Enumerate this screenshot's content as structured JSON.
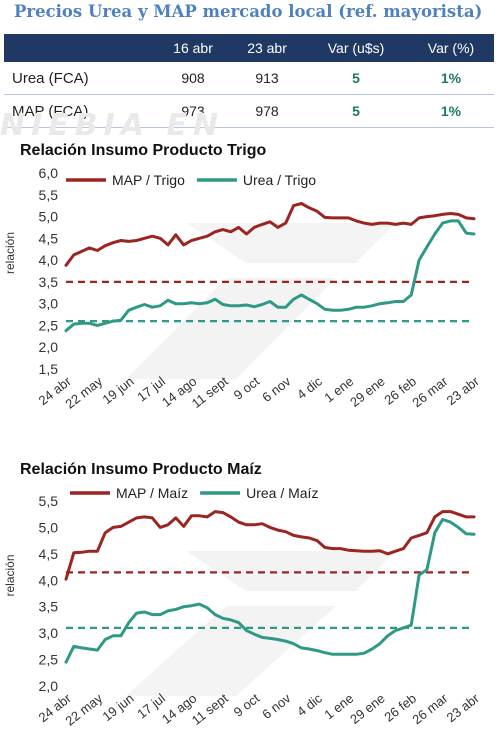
{
  "header": {
    "title": "Precios Urea y MAP mercado local (ref. mayorista)"
  },
  "table": {
    "columns": [
      "",
      "16 abr",
      "23 abr",
      "Var (u$s)",
      "Var (%)"
    ],
    "rows": [
      [
        "Urea (FCA)",
        "908",
        "913",
        "5",
        "1%"
      ],
      [
        "MAP (FCA)",
        "973",
        "978",
        "5",
        "1%"
      ]
    ]
  },
  "watermark": "NIEBIA EN",
  "colors": {
    "map": "#9b2521",
    "urea": "#2e9a86",
    "table_header": "#1f3864",
    "title": "#4f81bd"
  },
  "chart_data": [
    {
      "type": "line",
      "title": "Relación Insumo Producto Trigo",
      "ylabel": "relación",
      "ylim": [
        1.5,
        6.0
      ],
      "yticks": [
        "1,5",
        "2,0",
        "2,5",
        "3,0",
        "3,5",
        "4,0",
        "4,5",
        "5,0",
        "5,5",
        "6,0"
      ],
      "x_tick_labels": [
        "24 abr",
        "22 may",
        "19 jun",
        "17 jul",
        "14 ago",
        "11 sept",
        "9 oct",
        "6 nov",
        "4 dic",
        "1 ene",
        "29 ene",
        "26 feb",
        "26 mar",
        "23 abr"
      ],
      "x_range": [
        0,
        52
      ],
      "series": [
        {
          "name": "MAP / Trigo",
          "color": "#9b2521",
          "x": [
            0,
            1,
            2,
            3,
            4,
            5,
            6,
            7,
            8,
            9,
            10,
            11,
            12,
            13,
            14,
            15,
            16,
            17,
            18,
            19,
            20,
            21,
            22,
            23,
            24,
            25,
            26,
            27,
            28,
            29,
            30,
            31,
            32,
            33,
            34,
            35,
            36,
            37,
            38,
            39,
            40,
            41,
            42,
            43,
            44,
            45,
            46,
            47,
            48,
            49,
            50,
            51,
            52
          ],
          "values": [
            3.88,
            4.12,
            4.2,
            4.28,
            4.22,
            4.33,
            4.4,
            4.45,
            4.43,
            4.45,
            4.5,
            4.55,
            4.5,
            4.35,
            4.58,
            4.35,
            4.45,
            4.5,
            4.55,
            4.65,
            4.7,
            4.65,
            4.75,
            4.6,
            4.75,
            4.82,
            4.88,
            4.75,
            4.85,
            5.25,
            5.3,
            5.2,
            5.12,
            4.98,
            4.97,
            4.97,
            4.97,
            4.9,
            4.85,
            4.82,
            4.85,
            4.85,
            4.82,
            4.85,
            4.82,
            4.97,
            5.0,
            5.02,
            5.05,
            5.07,
            5.05,
            4.97,
            4.95
          ]
        },
        {
          "name": "Urea / Trigo",
          "color": "#2e9a86",
          "x": [
            0,
            1,
            2,
            3,
            4,
            5,
            6,
            7,
            8,
            9,
            10,
            11,
            12,
            13,
            14,
            15,
            16,
            17,
            18,
            19,
            20,
            21,
            22,
            23,
            24,
            25,
            26,
            27,
            28,
            29,
            30,
            31,
            32,
            33,
            34,
            35,
            36,
            37,
            38,
            39,
            40,
            41,
            42,
            43,
            44,
            45,
            46,
            47,
            48,
            49,
            50,
            51,
            52
          ],
          "values": [
            2.38,
            2.53,
            2.55,
            2.55,
            2.5,
            2.55,
            2.6,
            2.62,
            2.85,
            2.92,
            2.98,
            2.92,
            2.95,
            3.08,
            3.0,
            3.0,
            3.02,
            3.0,
            3.02,
            3.1,
            2.98,
            2.95,
            2.95,
            2.97,
            2.93,
            2.98,
            3.05,
            2.92,
            2.92,
            3.1,
            3.2,
            3.1,
            3.0,
            2.87,
            2.85,
            2.85,
            2.87,
            2.92,
            2.92,
            2.95,
            3.0,
            3.02,
            3.05,
            3.05,
            3.2,
            4.0,
            4.3,
            4.6,
            4.85,
            4.9,
            4.9,
            4.62,
            4.6
          ]
        }
      ],
      "reference_lines": [
        {
          "name": "MAP / Trigo",
          "value": 3.5,
          "color": "#9b2521",
          "style": "dashed"
        },
        {
          "name": "Urea / Trigo",
          "value": 2.6,
          "color": "#2e9a86",
          "style": "dashed"
        }
      ],
      "legend_position": "top"
    },
    {
      "type": "line",
      "title": "Relación Insumo Producto Maíz",
      "ylabel": "relación",
      "ylim": [
        2.0,
        5.5
      ],
      "yticks": [
        "2,0",
        "2,5",
        "3,0",
        "3,5",
        "4,0",
        "4,5",
        "5,0",
        "5,5"
      ],
      "x_tick_labels": [
        "24 abr",
        "22 may",
        "19 jun",
        "17 jul",
        "14 ago",
        "11 sept",
        "9 oct",
        "6 nov",
        "4 dic",
        "1 ene",
        "29 ene",
        "26 feb",
        "26 mar",
        "23 abr"
      ],
      "x_range": [
        0,
        52
      ],
      "series": [
        {
          "name": "MAP / Maíz",
          "color": "#9b2521",
          "x": [
            0,
            1,
            2,
            3,
            4,
            5,
            6,
            7,
            8,
            9,
            10,
            11,
            12,
            13,
            14,
            15,
            16,
            17,
            18,
            19,
            20,
            21,
            22,
            23,
            24,
            25,
            26,
            27,
            28,
            29,
            30,
            31,
            32,
            33,
            34,
            35,
            36,
            37,
            38,
            39,
            40,
            41,
            42,
            43,
            44,
            45,
            46,
            47,
            48,
            49,
            50,
            51,
            52
          ],
          "values": [
            4.02,
            4.52,
            4.53,
            4.55,
            4.55,
            4.9,
            5.0,
            5.02,
            5.1,
            5.18,
            5.2,
            5.18,
            5.0,
            5.05,
            5.18,
            5.02,
            5.22,
            5.22,
            5.2,
            5.3,
            5.28,
            5.2,
            5.1,
            5.05,
            5.05,
            5.07,
            5.0,
            4.95,
            4.92,
            4.85,
            4.82,
            4.8,
            4.75,
            4.62,
            4.6,
            4.6,
            4.57,
            4.56,
            4.55,
            4.55,
            4.56,
            4.5,
            4.55,
            4.6,
            4.8,
            4.85,
            4.9,
            5.2,
            5.3,
            5.3,
            5.25,
            5.2,
            5.2
          ]
        },
        {
          "name": "Urea / Maíz",
          "color": "#2e9a86",
          "x": [
            0,
            1,
            2,
            3,
            4,
            5,
            6,
            7,
            8,
            9,
            10,
            11,
            12,
            13,
            14,
            15,
            16,
            17,
            18,
            19,
            20,
            21,
            22,
            23,
            24,
            25,
            26,
            27,
            28,
            29,
            30,
            31,
            32,
            33,
            34,
            35,
            36,
            37,
            38,
            39,
            40,
            41,
            42,
            43,
            44,
            45,
            46,
            47,
            48,
            49,
            50,
            51,
            52
          ],
          "values": [
            2.45,
            2.75,
            2.72,
            2.7,
            2.68,
            2.88,
            2.95,
            2.95,
            3.2,
            3.38,
            3.4,
            3.35,
            3.35,
            3.42,
            3.45,
            3.5,
            3.52,
            3.55,
            3.48,
            3.35,
            3.28,
            3.25,
            3.2,
            3.05,
            2.98,
            2.92,
            2.9,
            2.88,
            2.85,
            2.8,
            2.72,
            2.7,
            2.67,
            2.63,
            2.6,
            2.6,
            2.6,
            2.6,
            2.62,
            2.7,
            2.8,
            2.95,
            3.05,
            3.1,
            3.15,
            4.1,
            4.2,
            4.9,
            5.15,
            5.1,
            5.0,
            4.88,
            4.87
          ]
        }
      ],
      "reference_lines": [
        {
          "name": "MAP / Maíz",
          "value": 4.15,
          "color": "#9b2521",
          "style": "dashed"
        },
        {
          "name": "Urea / Maíz",
          "value": 3.1,
          "color": "#2e9a86",
          "style": "dashed"
        }
      ],
      "legend_position": "top"
    }
  ]
}
